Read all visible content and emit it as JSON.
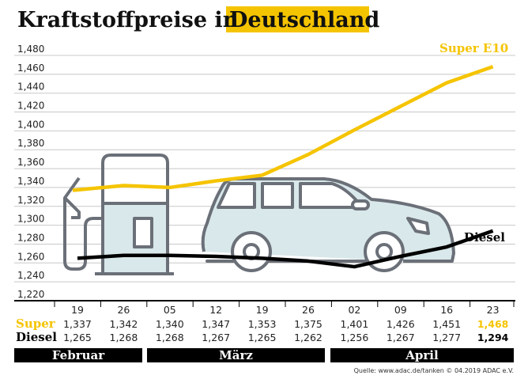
{
  "chart_data": {
    "type": "line",
    "title_part1": "Kraftstoffpreise in",
    "title_part2": "Deutschland",
    "x": [
      "19",
      "26",
      "05",
      "12",
      "19",
      "26",
      "02",
      "09",
      "16",
      "23"
    ],
    "months": [
      "Februar",
      "März",
      "April"
    ],
    "month_spans": [
      2,
      4,
      4
    ],
    "ylim": [
      1.22,
      1.48
    ],
    "yticks": [
      "1,480",
      "1,460",
      "1,440",
      "1,420",
      "1,400",
      "1,380",
      "1,360",
      "1,340",
      "1,320",
      "1,300",
      "1,280",
      "1,260",
      "1,240",
      "1,220"
    ],
    "grid": true,
    "series": [
      {
        "name": "Super E10",
        "row_label": "Super",
        "color": "#f5c400",
        "values": [
          1.337,
          1.342,
          1.34,
          1.347,
          1.353,
          1.375,
          1.401,
          1.426,
          1.451,
          1.468
        ],
        "labels": [
          "1,337",
          "1,342",
          "1,340",
          "1,347",
          "1,353",
          "1,375",
          "1,401",
          "1,426",
          "1,451",
          "1,468"
        ]
      },
      {
        "name": "Diesel",
        "row_label": "Diesel",
        "color": "#000000",
        "values": [
          1.265,
          1.268,
          1.268,
          1.267,
          1.265,
          1.262,
          1.256,
          1.267,
          1.277,
          1.294
        ],
        "labels": [
          "1,265",
          "1,268",
          "1,268",
          "1,267",
          "1,265",
          "1,262",
          "1,256",
          "1,267",
          "1,277",
          "1,294"
        ]
      }
    ],
    "source": "Quelle: www.adac.de/tanken   © 04.2019  ADAC e.V."
  },
  "colors": {
    "accent": "#f5c400",
    "illustration_fill": "#d9e8ea",
    "illustration_stroke": "#6b7078"
  }
}
